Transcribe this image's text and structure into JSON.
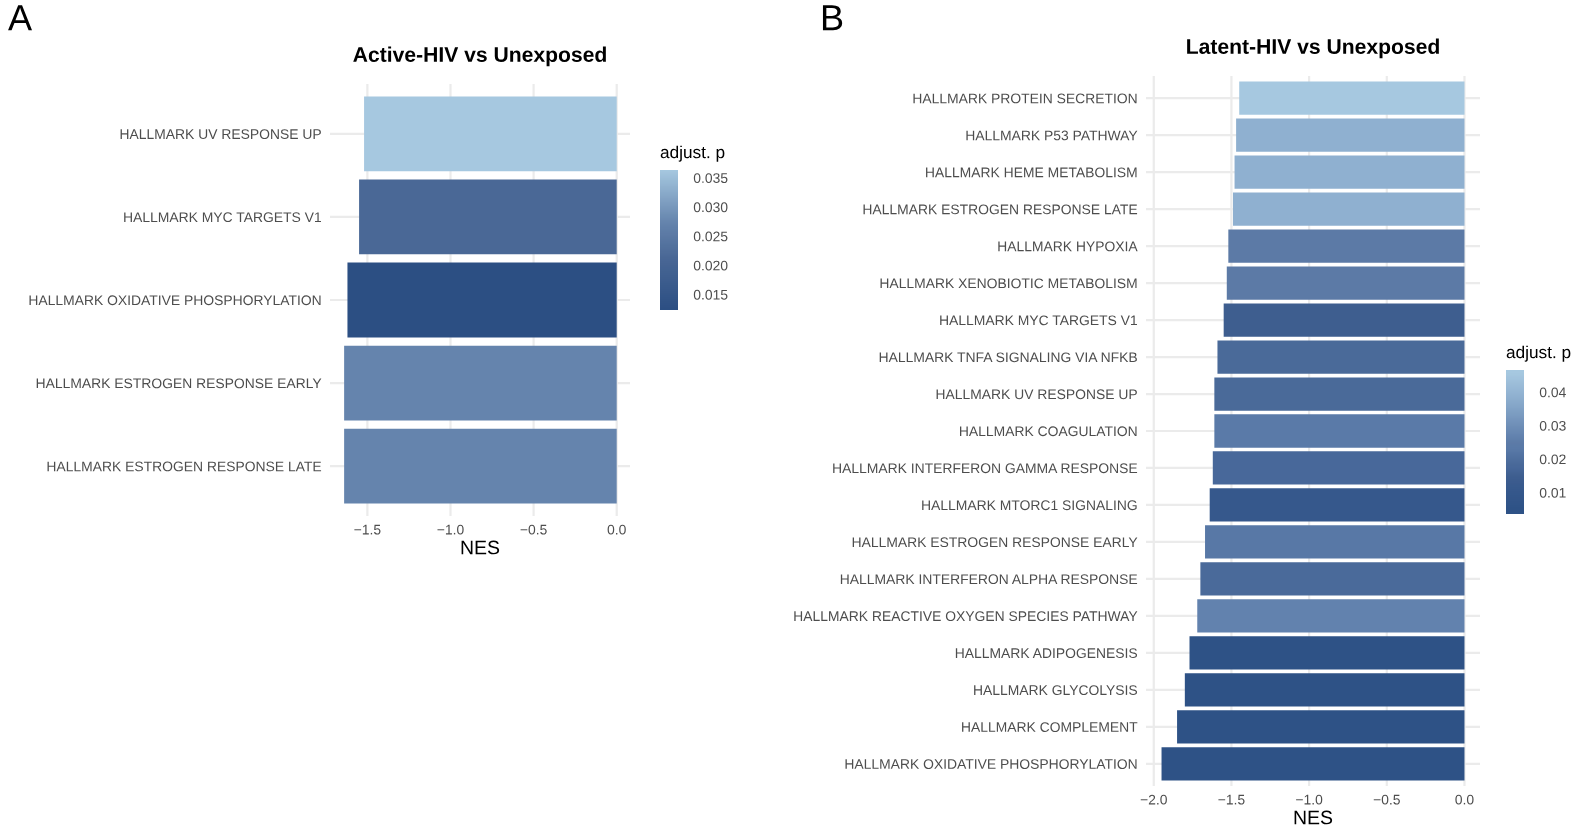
{
  "chart_data": [
    {
      "type": "bar",
      "orientation": "horizontal",
      "title": "Active-HIV vs Unexposed",
      "xlabel": "NES",
      "clabel": "adjust. p",
      "annotations": [
        "A"
      ],
      "grid": true,
      "categories": [
        "HALLMARK UV RESPONSE UP",
        "HALLMARK MYC TARGETS V1",
        "HALLMARK OXIDATIVE PHOSPHORYLATION",
        "HALLMARK ESTROGEN RESPONSE EARLY",
        "HALLMARK ESTROGEN RESPONSE LATE"
      ],
      "values": [
        -1.52,
        -1.55,
        -1.62,
        -1.64,
        -1.64
      ],
      "cvalues": [
        0.036,
        0.021,
        0.012,
        0.027,
        0.027
      ],
      "colors": [
        "#a6c8e0",
        "#4a6896",
        "#2c4f83",
        "#6584ad",
        "#6584ad"
      ],
      "xlim": [
        -1.725,
        0.08
      ],
      "xticks": [
        {
          "value": -1.5,
          "label": "−1.5"
        },
        {
          "value": -1.0,
          "label": "−1.0"
        },
        {
          "value": -0.5,
          "label": "−0.5"
        },
        {
          "value": 0.0,
          "label": "0.0"
        }
      ],
      "clim": [
        0.012,
        0.036
      ],
      "cticks": [
        0.015,
        {
          "value": 0.02,
          "label": "0.020"
        },
        0.025,
        {
          "value": 0.03,
          "label": "0.030"
        },
        0.035
      ]
    },
    {
      "type": "bar",
      "orientation": "horizontal",
      "title": "Latent-HIV vs Unexposed",
      "xlabel": "NES",
      "clabel": "adjust. p",
      "annotations": [
        "B"
      ],
      "grid": true,
      "categories": [
        "HALLMARK PROTEIN SECRETION",
        "HALLMARK P53 PATHWAY",
        "HALLMARK HEME METABOLISM",
        "HALLMARK ESTROGEN RESPONSE LATE",
        "HALLMARK HYPOXIA",
        "HALLMARK XENOBIOTIC METABOLISM",
        "HALLMARK MYC TARGETS V1",
        "HALLMARK TNFA SIGNALING VIA NFKB",
        "HALLMARK UV RESPONSE UP",
        "HALLMARK COAGULATION",
        "HALLMARK INTERFERON GAMMA RESPONSE",
        "HALLMARK MTORC1 SIGNALING",
        "HALLMARK ESTROGEN RESPONSE EARLY",
        "HALLMARK INTERFERON ALPHA RESPONSE",
        "HALLMARK REACTIVE OXYGEN SPECIES PATHWAY",
        "HALLMARK ADIPOGENESIS",
        "HALLMARK GLYCOLYSIS",
        "HALLMARK COMPLEMENT",
        "HALLMARK OXIDATIVE PHOSPHORYLATION"
      ],
      "values": [
        -1.45,
        -1.47,
        -1.48,
        -1.49,
        -1.52,
        -1.53,
        -1.55,
        -1.59,
        -1.61,
        -1.61,
        -1.62,
        -1.64,
        -1.67,
        -1.7,
        -1.72,
        -1.77,
        -1.8,
        -1.85,
        -1.95
      ],
      "cvalues": [
        0.045,
        0.038,
        0.038,
        0.038,
        0.024,
        0.024,
        0.014,
        0.018,
        0.018,
        0.023,
        0.017,
        0.01,
        0.022,
        0.018,
        0.026,
        0.004,
        0.004,
        0.004,
        0.004
      ],
      "colors": [
        "#a6c8e0",
        "#8fb0d0",
        "#8fb0d0",
        "#8fb0d0",
        "#5c7aa6",
        "#5c7aa6",
        "#3e5e8f",
        "#4a6a99",
        "#4a6a99",
        "#5a7aa8",
        "#48689a",
        "#36588c",
        "#5878a6",
        "#4a6a9a",
        "#6282ae",
        "#2e5286",
        "#2e5286",
        "#2e5286",
        "#2e5286"
      ],
      "xlim": [
        -2.05,
        0.1
      ],
      "xticks": [
        {
          "value": -2.0,
          "label": "−2.0"
        },
        {
          "value": -1.5,
          "label": "−1.5"
        },
        {
          "value": -1.0,
          "label": "−1.0"
        },
        {
          "value": -0.5,
          "label": "−0.5"
        },
        {
          "value": 0.0,
          "label": "0.0"
        }
      ],
      "clim": [
        0.003,
        0.046
      ],
      "cticks": [
        0.01,
        0.02,
        0.03,
        0.04
      ]
    }
  ]
}
